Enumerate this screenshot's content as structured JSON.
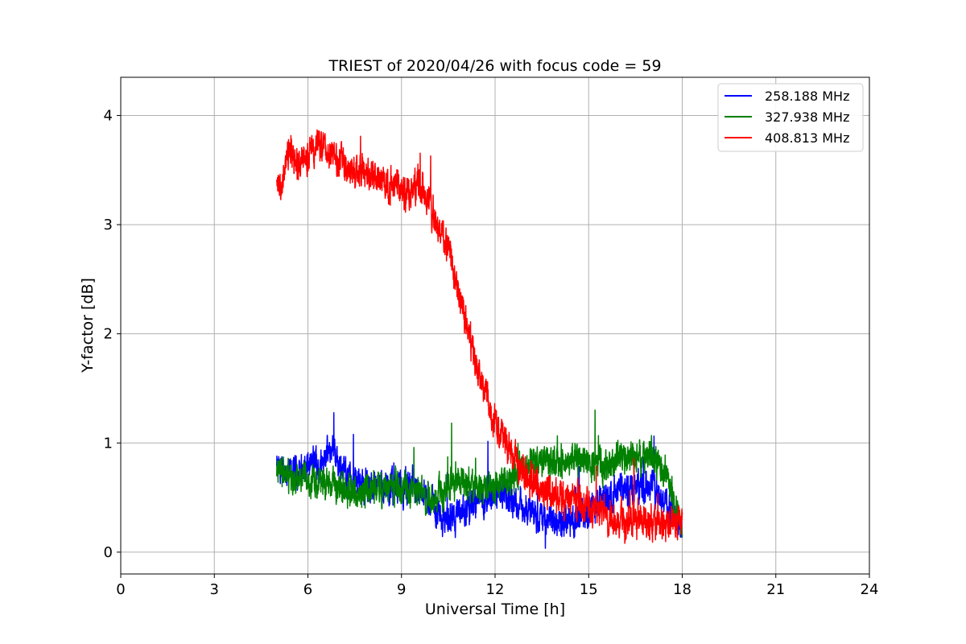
{
  "chart_data": {
    "type": "line",
    "title": "TRIEST of 2020/04/26 with focus code = 59",
    "xlabel": "Universal Time [h]",
    "ylabel": "Y-factor [dB]",
    "xlim": [
      0,
      24
    ],
    "ylim": [
      -0.2,
      4.35
    ],
    "xticks": [
      0,
      3,
      6,
      9,
      12,
      15,
      18,
      21,
      24
    ],
    "yticks": [
      0,
      1,
      2,
      3,
      4
    ],
    "grid": true,
    "legend_placement": "top-right",
    "series": [
      {
        "name": "258.188 MHz",
        "color": "#0000ff",
        "noise": 0.14,
        "x": [
          5.0,
          5.5,
          6.0,
          6.5,
          6.8,
          7.0,
          7.5,
          8.0,
          8.5,
          9.0,
          9.5,
          10.0,
          10.3,
          10.5,
          11.0,
          11.5,
          12.0,
          12.5,
          13.0,
          13.5,
          14.0,
          14.5,
          15.0,
          15.5,
          16.0,
          16.5,
          17.0,
          17.5,
          18.0
        ],
        "y": [
          0.75,
          0.72,
          0.78,
          0.85,
          0.95,
          0.8,
          0.65,
          0.62,
          0.6,
          0.58,
          0.6,
          0.45,
          0.3,
          0.32,
          0.38,
          0.5,
          0.55,
          0.5,
          0.38,
          0.32,
          0.28,
          0.3,
          0.4,
          0.5,
          0.55,
          0.6,
          0.62,
          0.45,
          0.2
        ]
      },
      {
        "name": "327.938 MHz",
        "color": "#008000",
        "noise": 0.14,
        "x": [
          5.0,
          5.5,
          6.0,
          6.5,
          7.0,
          7.5,
          8.0,
          8.5,
          9.0,
          9.5,
          10.0,
          10.5,
          11.0,
          11.5,
          12.0,
          12.5,
          13.0,
          13.5,
          14.0,
          14.5,
          15.0,
          15.5,
          16.0,
          16.5,
          17.0,
          17.5,
          18.0
        ],
        "y": [
          0.75,
          0.65,
          0.68,
          0.62,
          0.6,
          0.55,
          0.58,
          0.6,
          0.6,
          0.55,
          0.5,
          0.6,
          0.65,
          0.58,
          0.6,
          0.68,
          0.8,
          0.85,
          0.82,
          0.85,
          0.82,
          0.8,
          0.85,
          0.85,
          0.88,
          0.75,
          0.2
        ]
      },
      {
        "name": "408.813 MHz",
        "color": "#ff0000",
        "noise": 0.15,
        "x": [
          5.0,
          5.2,
          5.4,
          5.6,
          6.0,
          6.3,
          6.8,
          7.5,
          8.0,
          8.5,
          9.0,
          9.3,
          9.6,
          10.0,
          10.5,
          11.0,
          11.5,
          12.0,
          12.5,
          13.0,
          13.5,
          14.0,
          14.5,
          15.0,
          15.5,
          16.0,
          16.5,
          17.0,
          17.5,
          18.0
        ],
        "y": [
          3.3,
          3.4,
          3.75,
          3.55,
          3.6,
          3.75,
          3.62,
          3.5,
          3.45,
          3.38,
          3.3,
          3.3,
          3.4,
          3.1,
          2.8,
          2.15,
          1.6,
          1.2,
          0.9,
          0.7,
          0.6,
          0.5,
          0.5,
          0.42,
          0.35,
          0.3,
          0.28,
          0.28,
          0.25,
          0.3
        ]
      }
    ]
  }
}
